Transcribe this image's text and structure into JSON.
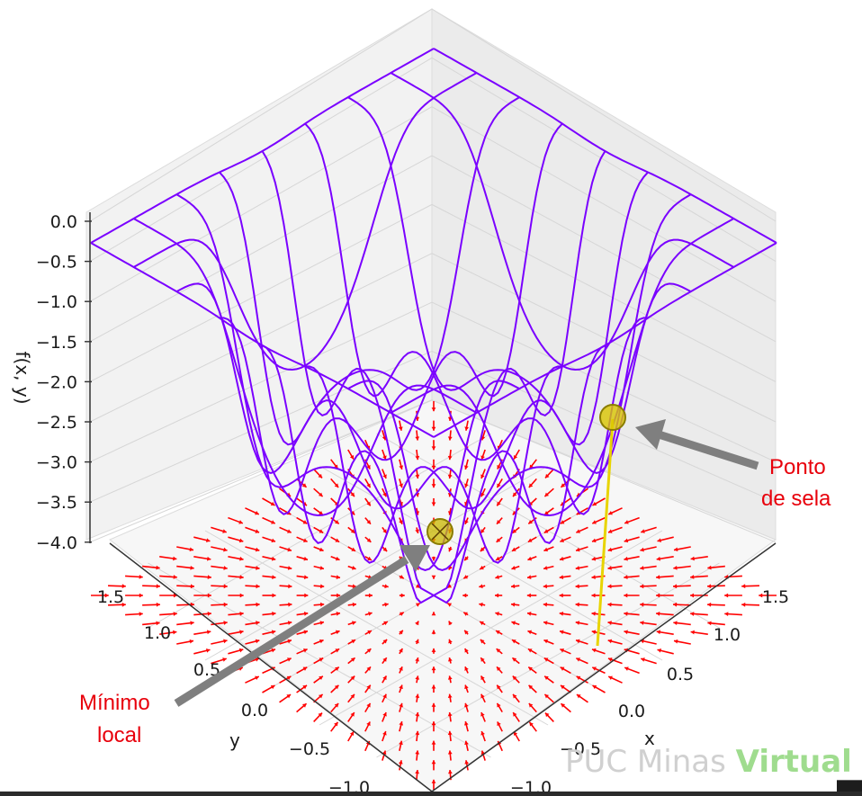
{
  "chart_data": {
    "type": "surface-3d",
    "surface": {
      "function_note": "",
      "grid_min": -1.5,
      "grid_max": 1.5,
      "mesh_lines": 9,
      "color": "#7a00ff"
    },
    "quiver": {
      "color": "#ff0000"
    },
    "zlabel": "f(x, y)",
    "xlabel": "x",
    "ylabel": "y",
    "z_ticks": [
      "0.0",
      "−0.5",
      "−1.0",
      "−1.5",
      "−2.0",
      "−2.5",
      "−3.0",
      "−3.5",
      "−4.0"
    ],
    "z_values": [
      0.0,
      -0.5,
      -1.0,
      -1.5,
      -2.0,
      -2.5,
      -3.0,
      -3.5,
      -4.0
    ],
    "x_ticks": [
      "1.5",
      "1.0",
      "0.5",
      "0.0",
      "−0.5",
      "−1.0"
    ],
    "y_ticks": [
      "1.5",
      "1.0",
      "0.5",
      "0.0",
      "−0.5",
      "−1.0"
    ],
    "zlim": [
      -4.0,
      0.0
    ],
    "xlim": [
      -1.5,
      1.5
    ],
    "ylim": [
      -1.5,
      1.5
    ],
    "grid": true,
    "points": [
      {
        "name": "Mínimo local",
        "x": 0.0,
        "y": 0.0,
        "z": -4.0,
        "color": "#c9b800"
      },
      {
        "name": "Ponto de sela",
        "x": 1.5,
        "y": 0.0,
        "z": -2.6,
        "color": "#c9b800"
      }
    ],
    "annotations": [
      {
        "id": "min",
        "lines": [
          "Mínimo",
          "local"
        ],
        "color": "#e8000b"
      },
      {
        "id": "saddle",
        "lines": [
          "Ponto",
          "de sela"
        ],
        "color": "#e8000b"
      }
    ]
  },
  "watermark": {
    "part1": "PUC Minas ",
    "part2": "Virtual"
  },
  "colors": {
    "arrow_gray": "#7f7f7f",
    "drop_line": "#e8d400"
  }
}
